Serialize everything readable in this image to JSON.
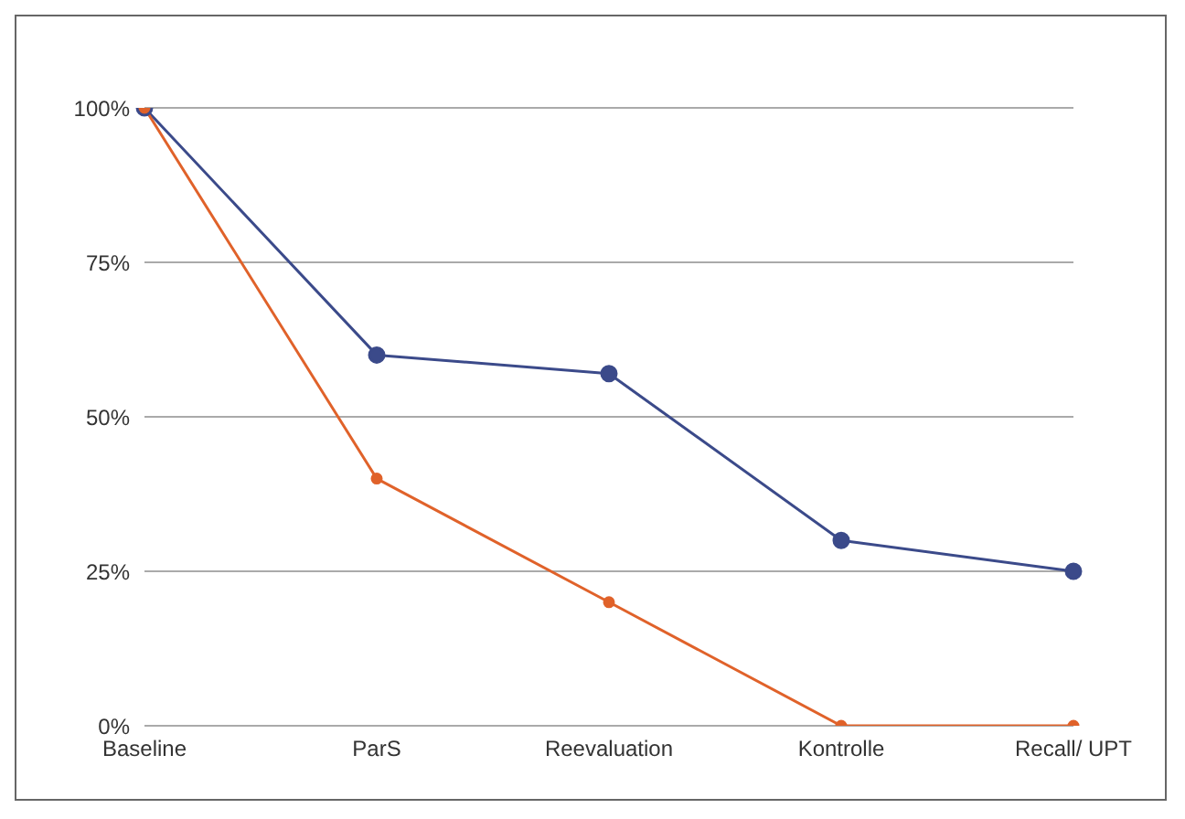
{
  "chart_data": {
    "type": "line",
    "categories": [
      "Baseline",
      "ParS",
      "Reevaluation",
      "Kontrolle",
      "Recall/ UPT"
    ],
    "series": [
      {
        "color": "#3b4a8a",
        "values": [
          100,
          60,
          57,
          30,
          25
        ]
      },
      {
        "color": "#e0622a",
        "values": [
          100,
          40,
          20,
          0,
          0
        ]
      }
    ],
    "ylim": [
      0,
      100
    ],
    "yticks": [
      {
        "value": 0,
        "label": "0%"
      },
      {
        "value": 25,
        "label": "25%"
      },
      {
        "value": 50,
        "label": "50%"
      },
      {
        "value": 75,
        "label": "75%"
      },
      {
        "value": 100,
        "label": "100%"
      }
    ],
    "grid": "y",
    "marker": "circle",
    "line_style": "solid",
    "legend": false
  }
}
